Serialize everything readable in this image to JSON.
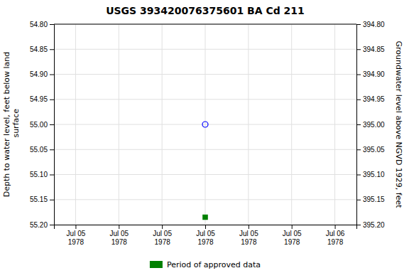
{
  "chart_data": {
    "type": "scatter",
    "title": "USGS 393420076375601 BA Cd 211",
    "ylabel": "Depth to water level, feet below land\n surface",
    "y2label": "Groundwater level above NGVD 1929, feet",
    "categories": [
      "Jul 05\n1978",
      "Jul 05\n1978",
      "Jul 05\n1978",
      "Jul 05\n1978",
      "Jul 05\n1978",
      "Jul 05\n1978",
      "Jul 06\n1978"
    ],
    "series": [
      {
        "color": "blue",
        "marker": "circle-open",
        "values": [
          null,
          null,
          null,
          55.0,
          null,
          null,
          null
        ]
      },
      {
        "name": "Period of approved data",
        "color": "#008000",
        "marker": "square",
        "values": [
          null,
          null,
          null,
          55.185,
          null,
          null,
          null
        ]
      }
    ],
    "ylim": [
      55.2,
      54.8
    ],
    "yticks": [
      {
        "value": 54.8,
        "label": "54.80"
      },
      {
        "value": 54.85,
        "label": "54.85"
      },
      {
        "value": 54.9,
        "label": "54.90"
      },
      {
        "value": 54.95,
        "label": "54.95"
      },
      {
        "value": 55.0,
        "label": "55.00"
      },
      {
        "value": 55.05,
        "label": "55.05"
      },
      {
        "value": 55.1,
        "label": "55.10"
      },
      {
        "value": 55.15,
        "label": "55.15"
      },
      {
        "value": 55.2,
        "label": "55.20"
      }
    ],
    "y2lim": [
      395.2,
      394.8
    ],
    "y2ticks": [
      {
        "value": 395.2,
        "label": "395.20"
      },
      {
        "value": 395.15,
        "label": "395.15"
      },
      {
        "value": 395.1,
        "label": "395.10"
      },
      {
        "value": 395.05,
        "label": "395.05"
      },
      {
        "value": 395.0,
        "label": "395.00"
      },
      {
        "value": 394.95,
        "label": "394.95"
      },
      {
        "value": 394.9,
        "label": "394.90"
      },
      {
        "value": 394.85,
        "label": "394.85"
      },
      {
        "value": 394.8,
        "label": "394.80"
      }
    ],
    "grid": true,
    "legend": "bottom"
  }
}
